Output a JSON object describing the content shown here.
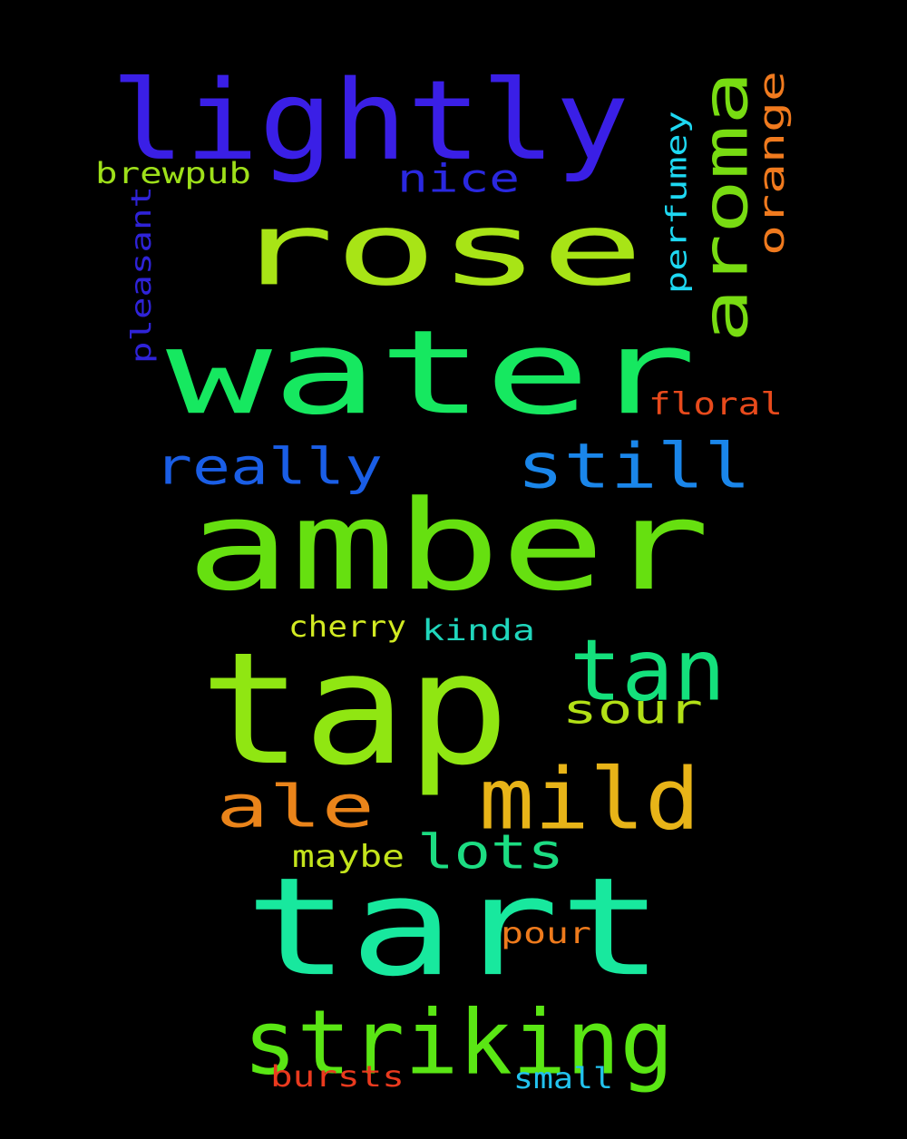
{
  "words": [
    {
      "id": "lightly",
      "text": "lightly",
      "color": "#3a1fe6"
    },
    {
      "id": "rose",
      "text": "rose",
      "color": "#a8e416"
    },
    {
      "id": "aroma",
      "text": "aroma",
      "color": "#78dc12"
    },
    {
      "id": "orange",
      "text": "orange",
      "color": "#f07a1e"
    },
    {
      "id": "brewpub",
      "text": "brewpub",
      "color": "#9ee01a"
    },
    {
      "id": "nice",
      "text": "nice",
      "color": "#2a28e0"
    },
    {
      "id": "perfumey",
      "text": "perfumey",
      "color": "#1ed8f2"
    },
    {
      "id": "pleasant",
      "text": "pleasant",
      "color": "#2f23d8"
    },
    {
      "id": "water",
      "text": "water",
      "color": "#16e860"
    },
    {
      "id": "floral",
      "text": "floral",
      "color": "#e84a1c"
    },
    {
      "id": "really",
      "text": "really",
      "color": "#1a5ee6"
    },
    {
      "id": "still",
      "text": "still",
      "color": "#1a86ea"
    },
    {
      "id": "amber",
      "text": "amber",
      "color": "#66e010"
    },
    {
      "id": "cherry",
      "text": "cherry",
      "color": "#d2ea22"
    },
    {
      "id": "kinda",
      "text": "kinda",
      "color": "#20d6bc"
    },
    {
      "id": "tap",
      "text": "tap",
      "color": "#90e612"
    },
    {
      "id": "tan",
      "text": "tan",
      "color": "#14e07c"
    },
    {
      "id": "sour",
      "text": "sour",
      "color": "#b2e016"
    },
    {
      "id": "mild",
      "text": "mild",
      "color": "#e8b418"
    },
    {
      "id": "ale",
      "text": "ale",
      "color": "#ea841a"
    },
    {
      "id": "lots",
      "text": "lots",
      "color": "#1cdc82"
    },
    {
      "id": "maybe",
      "text": "maybe",
      "color": "#c4e41c"
    },
    {
      "id": "tart",
      "text": "tart",
      "color": "#18e89e"
    },
    {
      "id": "pour",
      "text": "pour",
      "color": "#ee7a1c"
    },
    {
      "id": "striking",
      "text": "striking",
      "color": "#5ae614"
    },
    {
      "id": "bursts",
      "text": "bursts",
      "color": "#ea3a1e"
    },
    {
      "id": "small",
      "text": "small",
      "color": "#22c2ee"
    }
  ]
}
